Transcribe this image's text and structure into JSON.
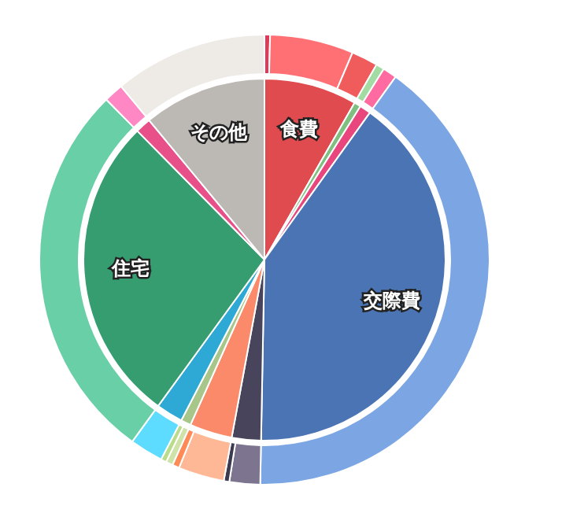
{
  "chart_data": [
    {
      "type": "pie",
      "categories": [
        "食費",
        null,
        null,
        "交際費",
        null,
        null,
        null,
        null,
        "住宅",
        null,
        "その他"
      ],
      "values": [
        8.3,
        0.6,
        1.0,
        40.4,
        2.6,
        3.8,
        0.9,
        2.4,
        27.6,
        1.4,
        11.0
      ],
      "colors": [
        "#e04b50",
        "#7fbf7f",
        "#e8467c",
        "#4a74b4",
        "#48445c",
        "#fb8a6a",
        "#a9c68a",
        "#2ea9d5",
        "#369d70",
        "#e8508a",
        "#bcb8b3"
      ]
    },
    {
      "type": "donut",
      "categories": [
        null,
        null,
        null,
        null,
        null,
        null,
        null,
        null,
        null,
        null,
        null,
        null,
        null,
        null,
        null,
        null
      ],
      "values": [
        0.4,
        6.0,
        1.9,
        0.6,
        1.0,
        40.4,
        2.2,
        0.4,
        3.3,
        0.5,
        0.5,
        0.4,
        2.4,
        27.6,
        1.4,
        11.0
      ],
      "colors": [
        "#e03a5a",
        "#ff7075",
        "#f05b5b",
        "#a3dca3",
        "#ff6aa0",
        "#7ba6e3",
        "#7d7590",
        "#3c3a50",
        "#ffb895",
        "#ff8a55",
        "#cfe3a8",
        "#b8dc8a",
        "#5ddcff",
        "#68cfa7",
        "#ff88c4",
        "#eeebe7"
      ]
    }
  ]
}
